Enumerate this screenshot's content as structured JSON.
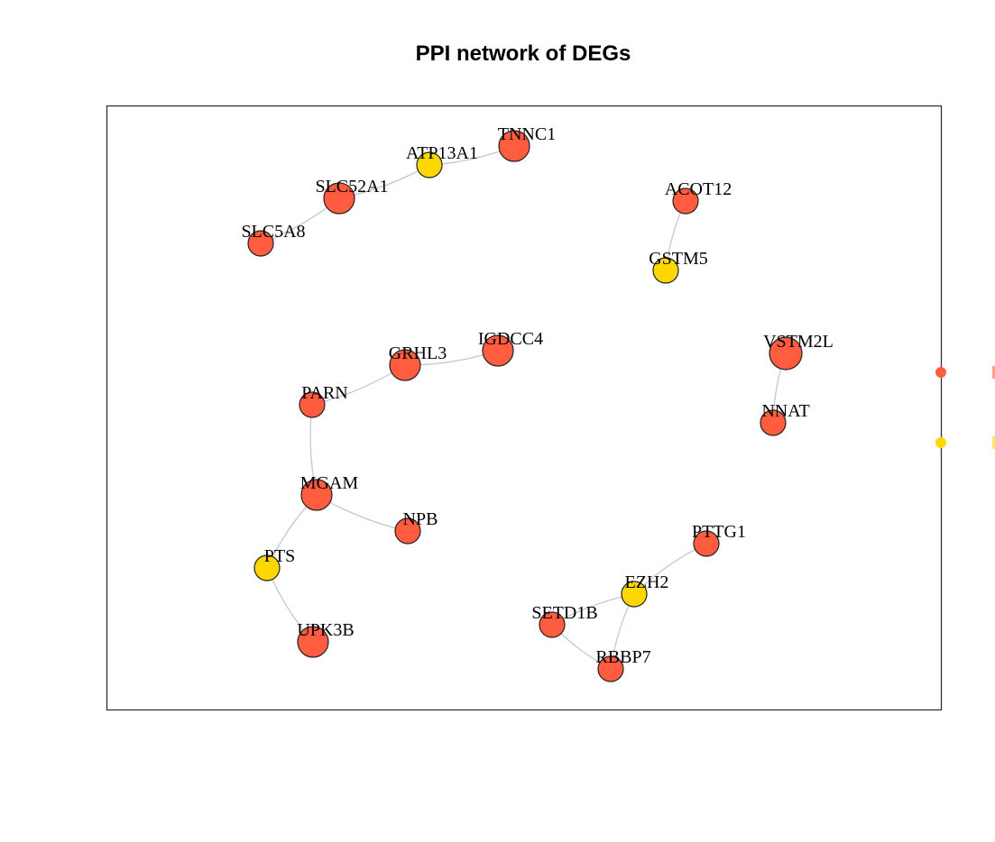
{
  "title": "PPI network of DEGs",
  "colors": {
    "up": "#FF5C40",
    "down": "#FFD700",
    "edge": "#C8C8C8",
    "border": "#333333"
  },
  "nodes": [
    {
      "id": "TNNC1",
      "group": "up"
    },
    {
      "id": "ATP13A1",
      "group": "down"
    },
    {
      "id": "SLC52A1",
      "group": "up"
    },
    {
      "id": "SLC5A8",
      "group": "up"
    },
    {
      "id": "ACOT12",
      "group": "up"
    },
    {
      "id": "GSTM5",
      "group": "down"
    },
    {
      "id": "GRHL3",
      "group": "up"
    },
    {
      "id": "IGDCC4",
      "group": "up"
    },
    {
      "id": "PARN",
      "group": "up"
    },
    {
      "id": "VSTM2L",
      "group": "up"
    },
    {
      "id": "NNAT",
      "group": "up"
    },
    {
      "id": "MGAM",
      "group": "up"
    },
    {
      "id": "NPB",
      "group": "up"
    },
    {
      "id": "PTS",
      "group": "down"
    },
    {
      "id": "UPK3B",
      "group": "up"
    },
    {
      "id": "PTTG1",
      "group": "up"
    },
    {
      "id": "EZH2",
      "group": "down"
    },
    {
      "id": "SETD1B",
      "group": "up"
    },
    {
      "id": "RBBP7",
      "group": "up"
    }
  ],
  "edges": [
    [
      "ATP13A1",
      "TNNC1"
    ],
    [
      "SLC52A1",
      "ATP13A1"
    ],
    [
      "SLC5A8",
      "SLC52A1"
    ],
    [
      "ACOT12",
      "GSTM5"
    ],
    [
      "GRHL3",
      "IGDCC4"
    ],
    [
      "PARN",
      "GRHL3"
    ],
    [
      "PARN",
      "MGAM"
    ],
    [
      "MGAM",
      "NPB"
    ],
    [
      "MGAM",
      "PTS"
    ],
    [
      "PTS",
      "UPK3B"
    ],
    [
      "VSTM2L",
      "NNAT"
    ],
    [
      "PTTG1",
      "EZH2"
    ],
    [
      "EZH2",
      "SETD1B"
    ],
    [
      "EZH2",
      "RBBP7"
    ],
    [
      "SETD1B",
      "RBBP7"
    ]
  ],
  "legend": [
    {
      "group": "up"
    },
    {
      "group": "down"
    }
  ]
}
